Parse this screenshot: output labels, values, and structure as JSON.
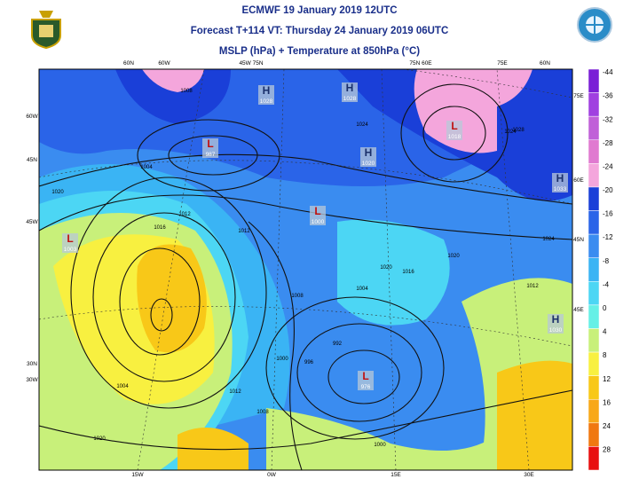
{
  "header": {
    "lines": [
      "ECMWF 19 January 2019 12UTC",
      "Forecast T+114 VT: Thursday 24 January 2019 06UTC",
      "MSLP (hPa) + Temperature at 850hPa (°C)"
    ]
  },
  "colorbar": {
    "bands": [
      {
        "label": "-44",
        "color": "#7a1fd6"
      },
      {
        "label": "-36",
        "color": "#a040e0"
      },
      {
        "label": "-32",
        "color": "#c060d8"
      },
      {
        "label": "-28",
        "color": "#e07ad0"
      },
      {
        "label": "-24",
        "color": "#f4a6dc"
      },
      {
        "label": "-20",
        "color": "#1a3fd8"
      },
      {
        "label": "-16",
        "color": "#2a64e8"
      },
      {
        "label": "-12",
        "color": "#3a8cf0"
      },
      {
        "label": "-8",
        "color": "#3ab4f4"
      },
      {
        "label": "-4",
        "color": "#4cd6f4"
      },
      {
        "label": "0",
        "color": "#66f0e6"
      },
      {
        "label": "4",
        "color": "#c8f07a"
      },
      {
        "label": "8",
        "color": "#f8f040"
      },
      {
        "label": "12",
        "color": "#f8c818"
      },
      {
        "label": "16",
        "color": "#f8a818"
      },
      {
        "label": "24",
        "color": "#f07810"
      },
      {
        "label": "28",
        "color": "#e81010"
      }
    ]
  },
  "map": {
    "grid_labels": [
      "60N",
      "60W",
      "45W 75N",
      "75N 60E",
      "75E",
      "60N",
      "60W",
      "45N",
      "45W",
      "30N",
      "30W",
      "75E",
      "60E",
      "45N",
      "45E",
      "15W",
      "0W",
      "15E",
      "30E"
    ],
    "centers": [
      {
        "type": "H",
        "value": "1028"
      },
      {
        "type": "H",
        "value": "1028"
      },
      {
        "type": "L",
        "value": "987"
      },
      {
        "type": "L",
        "value": "1018"
      },
      {
        "type": "H",
        "value": "1020"
      },
      {
        "type": "H",
        "value": "1033"
      },
      {
        "type": "L",
        "value": "1000"
      },
      {
        "type": "L",
        "value": "1003"
      },
      {
        "type": "H",
        "value": "1030"
      },
      {
        "type": "L",
        "value": "976"
      }
    ],
    "isobar_labels": [
      "1008",
      "1004",
      "1012",
      "1016",
      "1020",
      "1024",
      "1020",
      "1012",
      "1008",
      "1004",
      "1000",
      "996",
      "992",
      "1008",
      "1012",
      "1016",
      "1024",
      "1020",
      "1004",
      "1000",
      "1020",
      "1024",
      "1028",
      "1012"
    ]
  }
}
